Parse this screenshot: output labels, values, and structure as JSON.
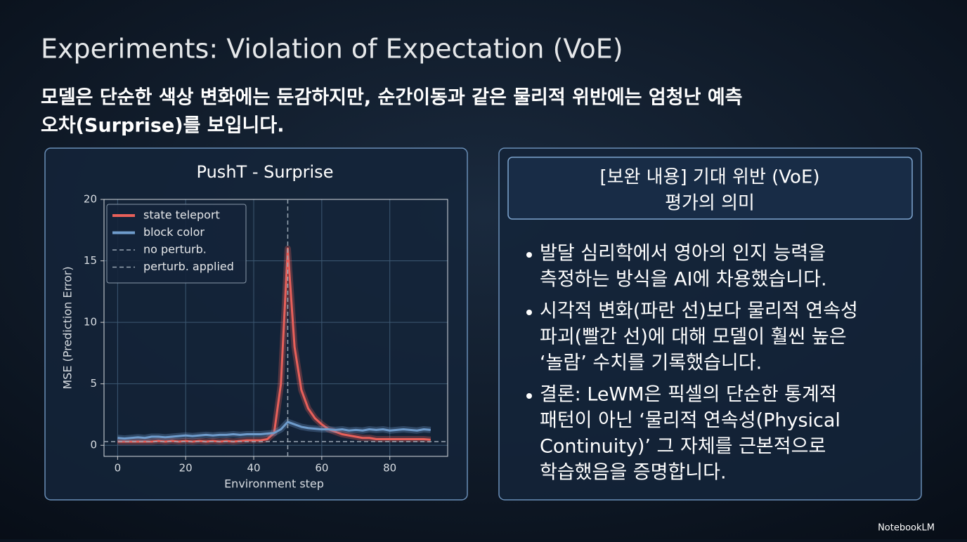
{
  "slide": {
    "title": "Experiments: Violation of Expectation (VoE)",
    "subtitle_lines": [
      "모델은 단순한 색상 변화에는 둔감하지만, 순간이동과 같은 물리적 위반에는 엄청난 예측",
      "오차(Surprise)를 보입니다."
    ],
    "panel_title_lines": [
      "[보완 내용] 기대 위반 (VoE)",
      "평가의 의미"
    ],
    "bullets": [
      [
        "발달 심리학에서 영아의 인지 능력을",
        "측정하는 방식을 AI에 차용했습니다."
      ],
      [
        "시각적 변화(파란 선)보다 물리적 연속성",
        "파괴(빨간 선)에 대해 모델이 훨씬 높은",
        "‘놀람’ 수치를 기록했습니다."
      ],
      [
        "결론: LeWM은 픽셀의 단순한 통계적",
        "패턴이 아닌 ‘물리적 연속성(Physical",
        "Continuity)’ 그 자체를 근본적으로",
        "학습했음을 증명합니다."
      ]
    ],
    "footer": "NotebookLM"
  },
  "chart_data": {
    "type": "line",
    "title": "PushT - Surprise",
    "x_label": "Environment step",
    "y_label": "MSE (Prediction Error)",
    "x": [
      0,
      2,
      4,
      6,
      8,
      10,
      12,
      14,
      16,
      18,
      20,
      22,
      24,
      26,
      28,
      30,
      32,
      34,
      36,
      38,
      40,
      42,
      44,
      46,
      48,
      50,
      52,
      54,
      56,
      58,
      60,
      62,
      64,
      66,
      68,
      70,
      72,
      74,
      76,
      78,
      80,
      82,
      84,
      86,
      88,
      90,
      92
    ],
    "series": [
      {
        "name": "state teleport",
        "color": "#e8605a",
        "values": [
          0.3,
          0.3,
          0.3,
          0.3,
          0.3,
          0.3,
          0.35,
          0.3,
          0.35,
          0.3,
          0.35,
          0.3,
          0.35,
          0.3,
          0.35,
          0.3,
          0.35,
          0.3,
          0.35,
          0.4,
          0.4,
          0.4,
          0.5,
          1.0,
          5,
          16,
          8,
          4.5,
          3,
          2.2,
          1.7,
          1.3,
          1.1,
          0.9,
          0.8,
          0.7,
          0.6,
          0.6,
          0.5,
          0.5,
          0.5,
          0.5,
          0.5,
          0.5,
          0.5,
          0.5,
          0.45
        ]
      },
      {
        "name": "block color",
        "color": "#6f9ccc",
        "values": [
          0.6,
          0.55,
          0.6,
          0.65,
          0.6,
          0.7,
          0.7,
          0.65,
          0.7,
          0.75,
          0.8,
          0.75,
          0.8,
          0.85,
          0.8,
          0.85,
          0.85,
          0.9,
          0.85,
          0.9,
          0.9,
          0.9,
          0.95,
          1.0,
          1.3,
          1.9,
          1.7,
          1.5,
          1.4,
          1.35,
          1.3,
          1.3,
          1.25,
          1.3,
          1.2,
          1.25,
          1.2,
          1.3,
          1.25,
          1.3,
          1.2,
          1.25,
          1.3,
          1.25,
          1.2,
          1.3,
          1.25
        ]
      }
    ],
    "reference_lines": [
      {
        "name": "no perturb.",
        "orientation": "horizontal",
        "value": 0.3,
        "color": "#9aa6b2"
      },
      {
        "name": "perturb. applied",
        "orientation": "vertical",
        "value": 50,
        "color": "#9aa6b2"
      }
    ],
    "xlim": [
      -4,
      97
    ],
    "ylim": [
      -0.9,
      20
    ],
    "xticks": [
      0,
      20,
      40,
      60,
      80
    ],
    "yticks": [
      0,
      5,
      10,
      15,
      20
    ],
    "grid": true,
    "legend": "upper left"
  }
}
